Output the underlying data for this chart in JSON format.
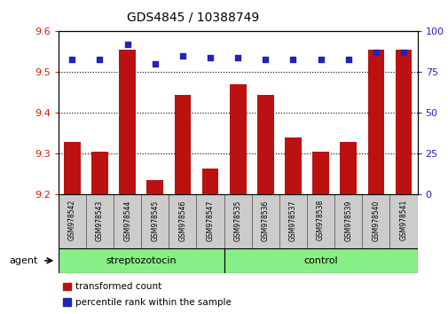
{
  "title": "GDS4845 / 10388749",
  "samples": [
    "GSM978542",
    "GSM978543",
    "GSM978544",
    "GSM978545",
    "GSM978546",
    "GSM978547",
    "GSM978535",
    "GSM978536",
    "GSM978537",
    "GSM978538",
    "GSM978539",
    "GSM978540",
    "GSM978541"
  ],
  "red_values": [
    9.33,
    9.305,
    9.555,
    9.235,
    9.445,
    9.265,
    9.47,
    9.445,
    9.34,
    9.305,
    9.33,
    9.555,
    9.555
  ],
  "blue_values": [
    83,
    83,
    92,
    80,
    85,
    84,
    84,
    83,
    83,
    83,
    83,
    87,
    87
  ],
  "ylim_left": [
    9.2,
    9.6
  ],
  "ylim_right": [
    0,
    100
  ],
  "yticks_left": [
    9.2,
    9.3,
    9.4,
    9.5,
    9.6
  ],
  "yticks_right": [
    0,
    25,
    50,
    75,
    100
  ],
  "red_color": "#bb1111",
  "blue_color": "#2222bb",
  "bar_bottom": 9.2,
  "groups": [
    {
      "label": "streptozotocin",
      "start": 0,
      "end": 6,
      "color": "#88ee88"
    },
    {
      "label": "control",
      "start": 6,
      "end": 13,
      "color": "#88ee88"
    }
  ],
  "legend_red": "transformed count",
  "legend_blue": "percentile rank within the sample",
  "tick_label_color": "#cc2200",
  "right_tick_color": "#2222bb",
  "label_bg_color": "#cccccc",
  "plot_bg_color": "#ffffff"
}
